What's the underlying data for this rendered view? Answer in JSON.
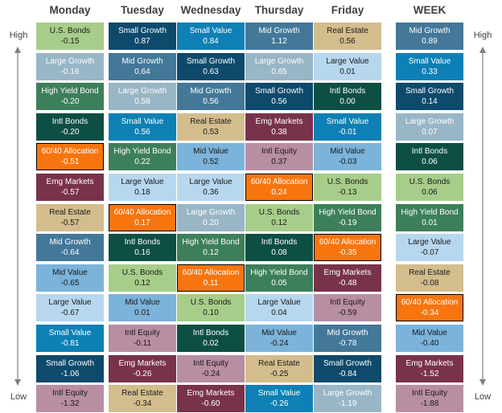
{
  "labels": {
    "high": "High",
    "low": "Low"
  },
  "category_colors": {
    "U.S. Bonds": {
      "bg": "#a7cd8a",
      "fg": "#1a1a1a"
    },
    "Large Growth": {
      "bg": "#98b6c6",
      "fg": "#ffffff"
    },
    "High Yield Bond": {
      "bg": "#3d7f5b",
      "fg": "#ffffff"
    },
    "Intl Bonds": {
      "bg": "#0d4f43",
      "fg": "#ffffff"
    },
    "60/40 Allocation": {
      "bg": "#f6750f",
      "fg": "#ffffff"
    },
    "Emg Markets": {
      "bg": "#79324c",
      "fg": "#ffffff"
    },
    "Real Estate": {
      "bg": "#d3bd8d",
      "fg": "#1a1a1a"
    },
    "Mid Growth": {
      "bg": "#437899",
      "fg": "#ffffff"
    },
    "Mid Value": {
      "bg": "#7cb3da",
      "fg": "#1a1a1a"
    },
    "Large Value": {
      "bg": "#b7d7ee",
      "fg": "#1a1a1a"
    },
    "Small Value": {
      "bg": "#0e80b5",
      "fg": "#ffffff"
    },
    "Small Growth": {
      "bg": "#0d4a6c",
      "fg": "#ffffff"
    },
    "Intl Equity": {
      "bg": "#b88ea2",
      "fg": "#1a1a1a"
    }
  },
  "chart_data": {
    "type": "table",
    "columns": [
      {
        "label": "Monday",
        "cells": [
          {
            "name": "U.S. Bonds",
            "value": "-0.15"
          },
          {
            "name": "Large Growth",
            "value": "-0.16"
          },
          {
            "name": "High Yield Bond",
            "value": "-0.20"
          },
          {
            "name": "Intl Bonds",
            "value": "-0.20"
          },
          {
            "name": "60/40 Allocation",
            "value": "-0.51"
          },
          {
            "name": "Emg Markets",
            "value": "-0.57"
          },
          {
            "name": "Real Estate",
            "value": "-0.57"
          },
          {
            "name": "Mid Growth",
            "value": "-0.64"
          },
          {
            "name": "Mid Value",
            "value": "-0.65"
          },
          {
            "name": "Large Value",
            "value": "-0.67"
          },
          {
            "name": "Small Value",
            "value": "-0.81"
          },
          {
            "name": "Small Growth",
            "value": "-1.06"
          },
          {
            "name": "Intl Equity",
            "value": "-1.32"
          }
        ]
      },
      {
        "label": "Tuesday",
        "cells": [
          {
            "name": "Small Growth",
            "value": "0.87"
          },
          {
            "name": "Mid Growth",
            "value": "0.64"
          },
          {
            "name": "Large Growth",
            "value": "0.58"
          },
          {
            "name": "Small Value",
            "value": "0.56"
          },
          {
            "name": "High Yield Bond",
            "value": "0.22"
          },
          {
            "name": "Large Value",
            "value": "0.18"
          },
          {
            "name": "60/40 Allocation",
            "value": "0.17"
          },
          {
            "name": "Intl Bonds",
            "value": "0.16"
          },
          {
            "name": "U.S. Bonds",
            "value": "0.12"
          },
          {
            "name": "Mid Value",
            "value": "0.01"
          },
          {
            "name": "Intl Equity",
            "value": "-0.11"
          },
          {
            "name": "Emg Markets",
            "value": "-0.26"
          },
          {
            "name": "Real Estate",
            "value": "-0.34"
          }
        ]
      },
      {
        "label": "Wednesday",
        "cells": [
          {
            "name": "Small Value",
            "value": "0.84"
          },
          {
            "name": "Small Growth",
            "value": "0.63"
          },
          {
            "name": "Mid Growth",
            "value": "0.56"
          },
          {
            "name": "Real Estate",
            "value": "0.53"
          },
          {
            "name": "Mid Value",
            "value": "0.52"
          },
          {
            "name": "Large Value",
            "value": "0.36"
          },
          {
            "name": "Large Growth",
            "value": "0.20"
          },
          {
            "name": "High Yield Bond",
            "value": "0.12"
          },
          {
            "name": "60/40 Allocation",
            "value": "0.11"
          },
          {
            "name": "U.S. Bonds",
            "value": "0.10"
          },
          {
            "name": "Intl Bonds",
            "value": "0.02"
          },
          {
            "name": "Intl Equity",
            "value": "-0.24"
          },
          {
            "name": "Emg Markets",
            "value": "-0.60"
          }
        ]
      },
      {
        "label": "Thursday",
        "cells": [
          {
            "name": "Mid Growth",
            "value": "1.12"
          },
          {
            "name": "Large Growth",
            "value": "0.65"
          },
          {
            "name": "Small Growth",
            "value": "0.56"
          },
          {
            "name": "Emg Markets",
            "value": "0.38"
          },
          {
            "name": "Intl Equity",
            "value": "0.37"
          },
          {
            "name": "60/40 Allocation",
            "value": "0.24"
          },
          {
            "name": "U.S. Bonds",
            "value": "0.12"
          },
          {
            "name": "Intl Bonds",
            "value": "0.08"
          },
          {
            "name": "High Yield Bond",
            "value": "0.05"
          },
          {
            "name": "Large Value",
            "value": "0.04"
          },
          {
            "name": "Mid Value",
            "value": "-0.24"
          },
          {
            "name": "Real Estate",
            "value": "-0.25"
          },
          {
            "name": "Small Value",
            "value": "-0.26"
          }
        ]
      },
      {
        "label": "Friday",
        "cells": [
          {
            "name": "Real Estate",
            "value": "0.56"
          },
          {
            "name": "Large Value",
            "value": "0.01"
          },
          {
            "name": "Intl Bonds",
            "value": "0.00"
          },
          {
            "name": "Small Value",
            "value": "-0.01"
          },
          {
            "name": "Mid Value",
            "value": "-0.03"
          },
          {
            "name": "U.S. Bonds",
            "value": "-0.13"
          },
          {
            "name": "High Yield Bond",
            "value": "-0.19"
          },
          {
            "name": "60/40 Allocation",
            "value": "-0.35"
          },
          {
            "name": "Emg Markets",
            "value": "-0.48"
          },
          {
            "name": "Intl Equity",
            "value": "-0.59"
          },
          {
            "name": "Mid Growth",
            "value": "-0.78"
          },
          {
            "name": "Small Growth",
            "value": "-0.84"
          },
          {
            "name": "Large Growth",
            "value": "-1.19"
          }
        ]
      },
      {
        "label": "WEEK",
        "cells": [
          {
            "name": "Mid Growth",
            "value": "0.89"
          },
          {
            "name": "Small Value",
            "value": "0.33"
          },
          {
            "name": "Small Growth",
            "value": "0.14"
          },
          {
            "name": "Large Growth",
            "value": "0.07"
          },
          {
            "name": "Intl Bonds",
            "value": "0.06"
          },
          {
            "name": "U.S. Bonds",
            "value": "0.06"
          },
          {
            "name": "High Yield Bond",
            "value": "0.01"
          },
          {
            "name": "Large Value",
            "value": "-0.07"
          },
          {
            "name": "Real Estate",
            "value": "-0.08"
          },
          {
            "name": "60/40 Allocation",
            "value": "-0.34"
          },
          {
            "name": "Mid Value",
            "value": "-0.40"
          },
          {
            "name": "Emg Markets",
            "value": "-1.52"
          },
          {
            "name": "Intl Equity",
            "value": "-1.88"
          }
        ]
      }
    ]
  }
}
